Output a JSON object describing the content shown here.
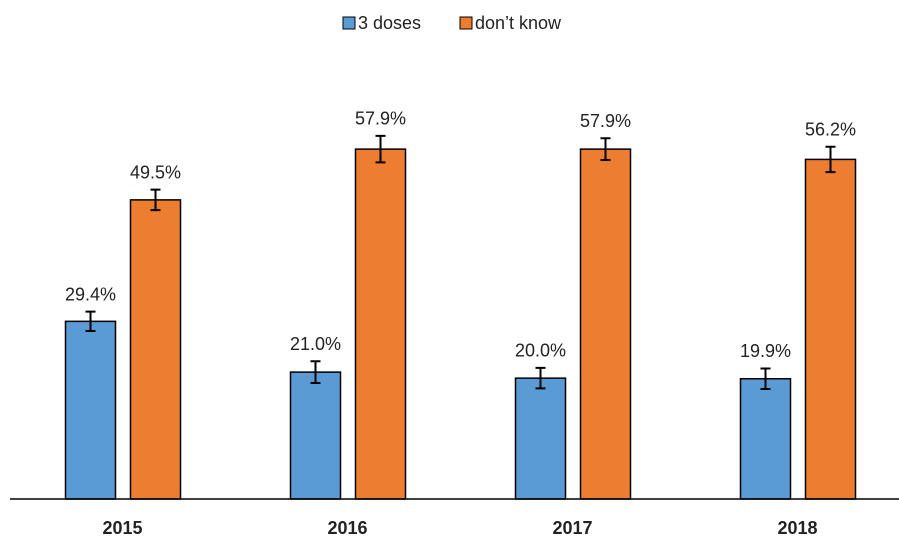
{
  "chart_data": {
    "type": "bar",
    "categories": [
      "2015",
      "2016",
      "2017",
      "2018"
    ],
    "series": [
      {
        "name": "3 doses",
        "color": "#5b9bd5",
        "values": [
          29.4,
          21.0,
          20.0,
          19.9
        ],
        "value_labels": [
          "29.4%",
          "21.0%",
          "20.0%",
          "19.9%"
        ],
        "errors": [
          1.6,
          1.8,
          1.7,
          1.7
        ]
      },
      {
        "name": "don’t know",
        "color": "#ed7d31",
        "values": [
          49.5,
          57.9,
          57.9,
          56.2
        ],
        "value_labels": [
          "49.5%",
          "57.9%",
          "57.9%",
          "56.2%"
        ],
        "errors": [
          1.7,
          2.2,
          1.8,
          2.1
        ]
      }
    ],
    "ylim": [
      0,
      70
    ]
  }
}
